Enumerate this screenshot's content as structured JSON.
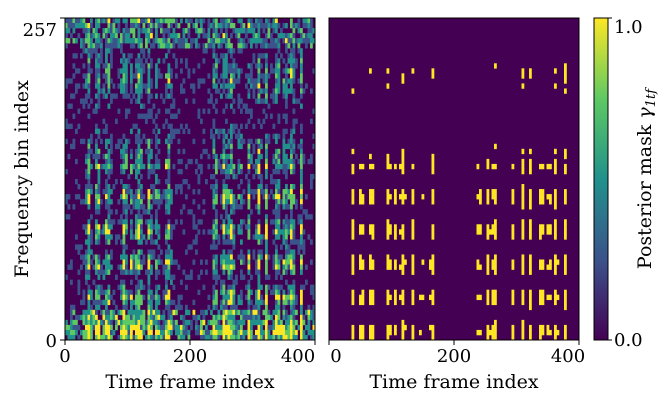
{
  "chart_data": [
    {
      "type": "heatmap",
      "panel": "left",
      "description_values": "noisy posterior mask with bright vertical speech streaks",
      "xlabel": "Time frame index",
      "ylabel": "Frequency bin index",
      "xlim": [
        0,
        400
      ],
      "ylim": [
        0,
        257
      ],
      "x_ticks": [
        0,
        200,
        400
      ],
      "x_tick_labels": [
        "0",
        "200",
        "400"
      ],
      "y_ticks": [
        0,
        257
      ],
      "y_tick_labels": [
        "0",
        "257"
      ],
      "colormap": "viridis",
      "value_range": [
        0.0,
        1.0
      ],
      "speech_columns": [
        38,
        52,
        68,
        95,
        105,
        118,
        135,
        148,
        165,
        240,
        255,
        265,
        280,
        295,
        310,
        322,
        340,
        352,
        362,
        378
      ]
    },
    {
      "type": "heatmap",
      "panel": "right",
      "xlabel": "Time frame index",
      "ylabel": "",
      "xlim": [
        0,
        400
      ],
      "ylim": [
        0,
        257
      ],
      "x_ticks": [
        0,
        200,
        400
      ],
      "x_tick_labels": [
        "0",
        "200",
        "400"
      ],
      "colormap": "viridis",
      "value_range": [
        0.0,
        1.0
      ],
      "speech_columns": [
        38,
        52,
        68,
        95,
        105,
        118,
        135,
        148,
        165,
        240,
        255,
        265,
        280,
        295,
        310,
        322,
        340,
        352,
        362,
        378
      ]
    }
  ],
  "colorbar": {
    "label": "Posterior mask γ1tf",
    "label_main": "Posterior mask ",
    "label_symbol": "γ",
    "label_sub": "1tf",
    "ticks": [
      "0.0",
      "1.0"
    ],
    "colors": {
      "low": "#440154",
      "mid_low": "#3b528b",
      "mid": "#21918c",
      "mid_high": "#5ec962",
      "high": "#fde725"
    }
  }
}
